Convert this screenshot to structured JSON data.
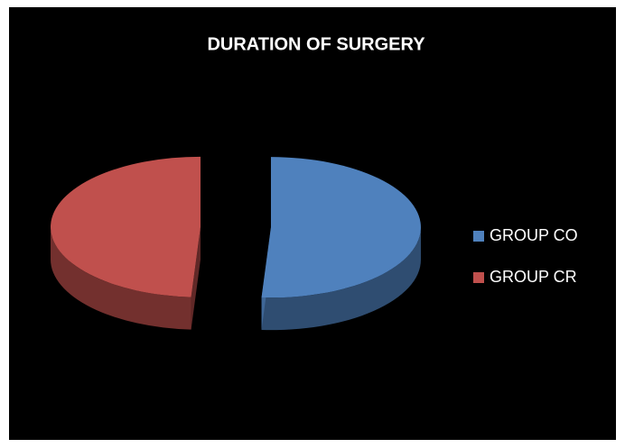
{
  "chart_data": {
    "type": "pie",
    "title": "DURATION OF SURGERY",
    "categories": [
      "GROUP CO",
      "GROUP CR"
    ],
    "values": [
      51,
      49
    ],
    "colors": [
      "#4f81bd",
      "#c0504d"
    ],
    "legend": "right"
  }
}
